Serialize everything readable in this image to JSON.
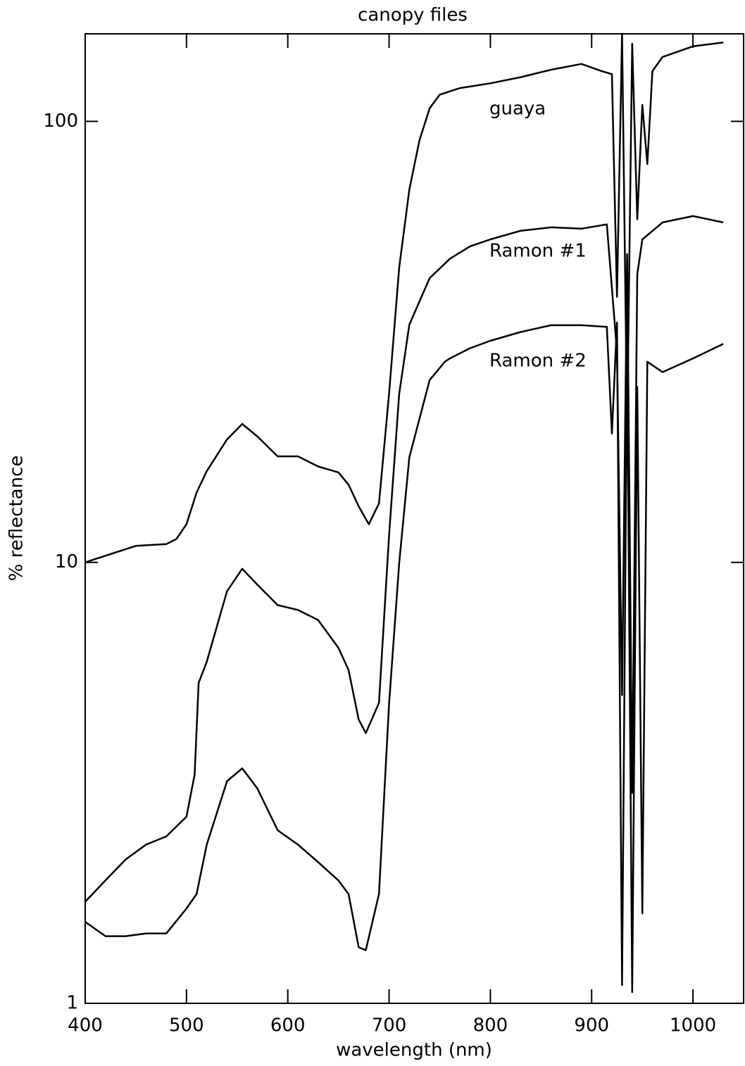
{
  "chart_data": {
    "type": "line",
    "title": "canopy files",
    "x_label": "wavelength (nm)",
    "y_label": "% reflectance",
    "xlim": [
      400,
      1050
    ],
    "xticks": [
      400,
      500,
      600,
      700,
      800,
      900,
      1000
    ],
    "ylim": [
      1,
      158
    ],
    "yticks": [
      1,
      10,
      100
    ],
    "y_scale": "log",
    "grid": false,
    "series": [
      {
        "name": "guaya",
        "color": "#000000",
        "x": [
          400,
          450,
          480,
          490,
          500,
          510,
          520,
          540,
          555,
          570,
          590,
          610,
          630,
          650,
          660,
          670,
          680,
          690,
          700,
          710,
          720,
          730,
          740,
          750,
          770,
          800,
          830,
          860,
          890,
          910,
          920,
          925,
          930,
          935,
          940,
          945,
          950,
          955,
          960,
          970,
          1000,
          1030
        ],
        "values": [
          10,
          10.9,
          11.0,
          11.3,
          12.2,
          14.4,
          16.1,
          19.0,
          20.6,
          19.3,
          17.4,
          17.4,
          16.5,
          16.0,
          15.0,
          13.4,
          12.2,
          13.6,
          24.1,
          46.6,
          70,
          90.6,
          107,
          115,
          119,
          122,
          126,
          131,
          135,
          130,
          128,
          40,
          158,
          20,
          150,
          60,
          109,
          80,
          130,
          140,
          148,
          151
        ]
      },
      {
        "name": "Ramon #1",
        "color": "#000000",
        "x": [
          400,
          420,
          440,
          460,
          480,
          500,
          508,
          512,
          520,
          540,
          555,
          570,
          590,
          610,
          630,
          650,
          660,
          670,
          677,
          690,
          700,
          710,
          720,
          740,
          760,
          780,
          800,
          830,
          860,
          890,
          915,
          925,
          930,
          935,
          940,
          945,
          950,
          970,
          1000,
          1030
        ],
        "values": [
          1.7,
          1.9,
          2.12,
          2.29,
          2.39,
          2.65,
          3.3,
          5.33,
          5.95,
          8.6,
          9.67,
          8.9,
          8.0,
          7.8,
          7.4,
          6.4,
          5.7,
          4.4,
          4.1,
          4.8,
          11.5,
          24.1,
          34.6,
          44.1,
          48.8,
          52.1,
          54.0,
          56.5,
          57.5,
          57.1,
          58.4,
          30,
          5,
          50,
          3,
          45,
          54,
          59,
          61,
          59
        ]
      },
      {
        "name": "Ramon #2",
        "color": "#000000",
        "x": [
          400,
          420,
          440,
          460,
          480,
          500,
          510,
          520,
          540,
          555,
          570,
          590,
          610,
          630,
          650,
          660,
          670,
          677,
          690,
          700,
          710,
          720,
          740,
          755,
          760,
          780,
          800,
          830,
          860,
          890,
          915,
          920,
          925,
          930,
          935,
          940,
          945,
          950,
          955,
          970,
          1000,
          1030
        ],
        "values": [
          1.53,
          1.42,
          1.42,
          1.44,
          1.44,
          1.64,
          1.77,
          2.29,
          3.19,
          3.41,
          3.07,
          2.47,
          2.29,
          2.09,
          1.9,
          1.77,
          1.34,
          1.32,
          1.77,
          4.77,
          9.96,
          17.3,
          25.9,
          28.5,
          29.0,
          30.6,
          31.8,
          33.3,
          34.5,
          34.5,
          34.2,
          19.6,
          35,
          1.1,
          30,
          1.06,
          25,
          1.6,
          28.5,
          27.0,
          29.0,
          31.3
        ]
      }
    ]
  }
}
